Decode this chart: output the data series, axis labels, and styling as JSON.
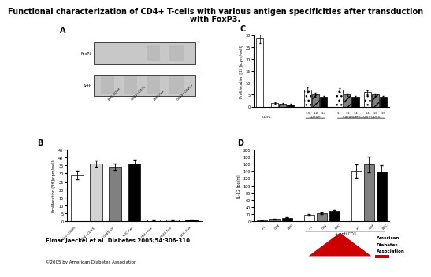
{
  "title_line1": "Functional characterization of CD4+ T-cells with various antigen specificities after transduction",
  "title_line2": "with FoxP3.",
  "title_fontsize": 7.0,
  "citation": "Elmar Jaeckel et al. Diabetes 2005;54:306-310",
  "copyright": "©2005 by American Diabetes Association",
  "panel_A_label": "A",
  "panel_B_label": "B",
  "panel_C_label": "C",
  "panel_D_label": "D",
  "panel_A_row_labels": [
    "FoxP3",
    "Actb"
  ],
  "panel_A_col_labels": [
    "BDC-CD97",
    "CD44+CD25",
    "BDC-Fox",
    "CD44+CD25+"
  ],
  "panel_B_ylabel": "Proliferation [3H](cpm/well)",
  "panel_B_categories": [
    "Con+CD95",
    "CD4+CD25",
    "CD40-D4",
    "BDC-Fox",
    "CD4+Fox",
    "CD40-Fox",
    "BDC-Fox"
  ],
  "panel_B_values": [
    29,
    36,
    34,
    36,
    1,
    1,
    1
  ],
  "panel_B_colors": [
    "white",
    "lightgray",
    "gray",
    "black",
    "white",
    "lightgray",
    "black"
  ],
  "panel_B_yticks": [
    0,
    5,
    10,
    15,
    20,
    25,
    30,
    35,
    40,
    45
  ],
  "panel_B_yerr": [
    2.5,
    2.0,
    2.0,
    2.5,
    0.3,
    0.3,
    0.3
  ],
  "panel_C_ylabel": "Proliferation [3H](cpm/well)",
  "panel_C_yticks": [
    0,
    5,
    10,
    15,
    20,
    25,
    30
  ],
  "panel_C_group1_label": "CD95-",
  "panel_C_group2_label": "CD25+",
  "panel_C_group3_label": "Coculture CD25+CD95",
  "panel_C_group2_cats": [
    "1:1",
    "1:2",
    "1:4"
  ],
  "panel_C_group3_cats": [
    "1:1",
    "1:2",
    "1:4",
    "1:4",
    "1:8",
    "1:8"
  ],
  "panel_C_g1_vals": [
    29,
    1.5,
    1.2,
    1.0
  ],
  "panel_C_g1_colors": [
    "white",
    "white",
    "gray",
    "black"
  ],
  "panel_C_g1_yerr": [
    2.5,
    0.2,
    0.2,
    0.2
  ],
  "panel_C_g1_hatch": [
    "",
    "",
    "///",
    ""
  ],
  "panel_C_g2_vals": [
    7,
    5,
    4
  ],
  "panel_C_g2_colors": [
    "white",
    "gray",
    "black"
  ],
  "panel_C_g2_yerr": [
    1.0,
    0.8,
    0.5
  ],
  "panel_C_g2_hatch": [
    "...",
    "///",
    ""
  ],
  "panel_C_g3a_vals": [
    7,
    5,
    4
  ],
  "panel_C_g3a_colors": [
    "white",
    "gray",
    "black"
  ],
  "panel_C_g3a_hatch": [
    "...",
    "///",
    ""
  ],
  "panel_C_g3b_vals": [
    6,
    5,
    4
  ],
  "panel_C_g3b_colors": [
    "white",
    "gray",
    "black"
  ],
  "panel_C_g3b_hatch": [
    "...",
    "///",
    ""
  ],
  "panel_C_g3_yerr": [
    0.8,
    0.6,
    0.5,
    0.8,
    0.6,
    0.5
  ],
  "panel_D_ylabel": "IL-12 (pg/ml)",
  "panel_D_yticks": [
    0,
    20,
    40,
    60,
    80,
    100,
    120,
    140,
    160,
    180,
    200
  ],
  "panel_D_group_label": "+ anti CD3",
  "panel_D_cats": [
    "c/f",
    "CD4",
    "BDC"
  ],
  "panel_D_g1_vals": [
    3,
    6,
    10
  ],
  "panel_D_g1_colors": [
    "white",
    "gray",
    "black"
  ],
  "panel_D_g1_yerr": [
    0.5,
    0.8,
    1.0
  ],
  "panel_D_g2_vals": [
    18,
    22,
    28
  ],
  "panel_D_g2_colors": [
    "white",
    "gray",
    "black"
  ],
  "panel_D_g2_yerr": [
    2.0,
    2.5,
    3.0
  ],
  "panel_D_g3_vals": [
    140,
    158,
    138
  ],
  "panel_D_g3_colors": [
    "white",
    "gray",
    "black"
  ],
  "panel_D_g3_yerr": [
    18,
    22,
    18
  ],
  "bg_color": "#ffffff",
  "gel_bg": "#c8c8c8",
  "gel_band_dark": "#444444",
  "gel_band_light": "#888888",
  "ada_red": "#cc0000"
}
